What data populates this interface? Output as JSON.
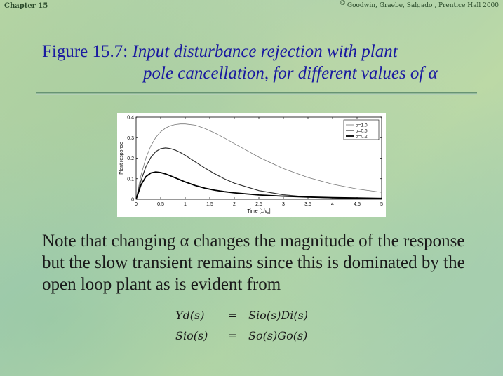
{
  "header": {
    "chapter": "Chapter 15",
    "copyright_symbol": "©",
    "copyright": "Goodwin, Graebe, Salgado , Prentice Hall 2000"
  },
  "title": {
    "figure_label": "Figure 15.7:",
    "line1": "Input disturbance rejection with plant",
    "line2": "pole cancellation, for different values of α"
  },
  "chart_data": {
    "type": "line",
    "xlabel": "Time [1/ν",
    "xlabel_sub": "o",
    "xlabel_close": "]",
    "ylabel": "Plant response",
    "xlim": [
      0,
      5
    ],
    "ylim": [
      0,
      0.4
    ],
    "xticks": [
      "0",
      "0.5",
      "1",
      "1.5",
      "2",
      "2.5",
      "3",
      "3.5",
      "4",
      "4.5",
      "5"
    ],
    "yticks": [
      "0",
      "0.1",
      "0.2",
      "0.3",
      "0.4"
    ],
    "legend_position": "top-right",
    "series": [
      {
        "name": "α=1.0",
        "x": [
          0,
          0.1,
          0.2,
          0.3,
          0.4,
          0.5,
          0.6,
          0.7,
          0.8,
          0.9,
          1.0,
          1.2,
          1.4,
          1.6,
          1.8,
          2.0,
          2.5,
          3.0,
          3.5,
          4.0,
          4.5,
          5.0
        ],
        "y": [
          0,
          0.117,
          0.201,
          0.26,
          0.301,
          0.329,
          0.347,
          0.358,
          0.364,
          0.367,
          0.367,
          0.361,
          0.345,
          0.323,
          0.298,
          0.271,
          0.205,
          0.149,
          0.106,
          0.073,
          0.05,
          0.034
        ]
      },
      {
        "name": "α=0.5",
        "x": [
          0,
          0.1,
          0.2,
          0.3,
          0.4,
          0.5,
          0.6,
          0.7,
          0.8,
          0.9,
          1.0,
          1.2,
          1.4,
          1.6,
          1.8,
          2.0,
          2.5,
          3.0,
          3.5,
          4.0,
          4.5,
          5.0
        ],
        "y": [
          0,
          0.091,
          0.159,
          0.204,
          0.232,
          0.246,
          0.25,
          0.247,
          0.239,
          0.228,
          0.214,
          0.183,
          0.152,
          0.124,
          0.099,
          0.078,
          0.042,
          0.022,
          0.011,
          0.006,
          0.003,
          0.001
        ]
      },
      {
        "name": "α=0.2",
        "x": [
          0,
          0.1,
          0.2,
          0.3,
          0.4,
          0.5,
          0.6,
          0.7,
          0.8,
          0.9,
          1.0,
          1.2,
          1.4,
          1.6,
          1.8,
          2.0,
          2.5,
          3.0,
          3.5,
          4.0,
          4.5,
          5.0
        ],
        "y": [
          0,
          0.07,
          0.11,
          0.128,
          0.133,
          0.13,
          0.123,
          0.114,
          0.104,
          0.094,
          0.084,
          0.067,
          0.054,
          0.044,
          0.037,
          0.031,
          0.021,
          0.015,
          0.011,
          0.008,
          0.006,
          0.004
        ]
      }
    ]
  },
  "colors": {
    "series": [
      "#777777",
      "#333333",
      "#000000"
    ],
    "series_width": [
      0.8,
      1.2,
      1.8
    ]
  },
  "paragraph": "Note that changing α changes the magnitude of the response but the slow transient remains since this is dominated by the open loop plant as is evident from",
  "equations": [
    {
      "lhs": "Yd(s)",
      "op": "=",
      "rhs": "Sio(s)Di(s)"
    },
    {
      "lhs": "Sio(s)",
      "op": "=",
      "rhs": "So(s)Go(s)"
    }
  ]
}
